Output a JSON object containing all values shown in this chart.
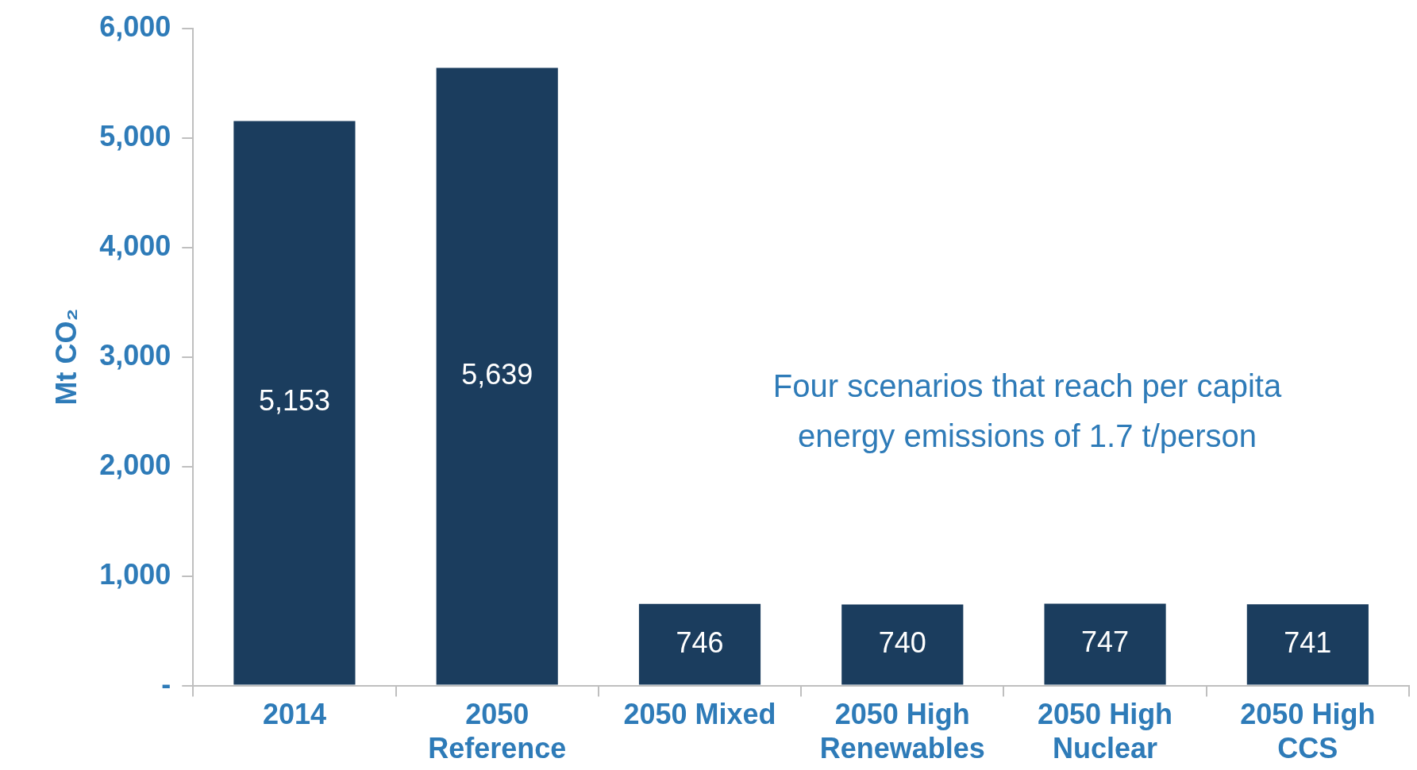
{
  "chart_data": {
    "type": "bar",
    "ylabel": "Mt CO₂",
    "categories": [
      "2014",
      "2050 Reference",
      "2050 Mixed",
      "2050 High Renewables",
      "2050 High Nuclear",
      "2050 High CCS"
    ],
    "values": [
      5153,
      5639,
      746,
      740,
      747,
      741
    ],
    "color": "#1b3d5e",
    "ylim": [
      0,
      6000
    ],
    "yticks": [
      {
        "value": 0,
        "label": "-"
      },
      {
        "value": 1000,
        "label": "1,000"
      },
      {
        "value": 2000,
        "label": "2,000"
      },
      {
        "value": 3000,
        "label": "3,000"
      },
      {
        "value": 4000,
        "label": "4,000"
      },
      {
        "value": 5000,
        "label": "5,000"
      },
      {
        "value": 6000,
        "label": "6,000"
      }
    ],
    "value_labels": [
      "5,153",
      "5,639",
      "746",
      "740",
      "747",
      "741"
    ],
    "annotations": [
      "Four scenarios that reach per capita energy emissions of 1.7 t/person"
    ]
  }
}
